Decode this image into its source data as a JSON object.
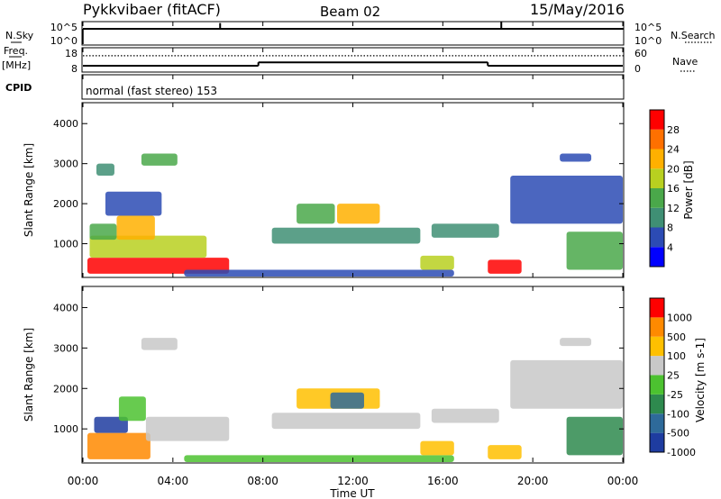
{
  "header": {
    "station": "Pykkvibaer (fitACF)",
    "beam": "Beam 02",
    "date": "15/May/2016"
  },
  "noise_panel": {
    "left_label": "N.Sky",
    "left_ticks": [
      "10^5",
      "10^0"
    ],
    "right_label": "N.Search",
    "right_ticks": [
      "10^5",
      "10^0"
    ]
  },
  "freq_panel": {
    "left_label_line1": "Freq.",
    "left_label_line2": "[MHz]",
    "left_ticks": [
      "18",
      "8"
    ],
    "right_label": "Nave",
    "right_ticks": [
      "60",
      "0"
    ]
  },
  "cpid_panel": {
    "label": "CPID",
    "text": "normal (fast stereo) 153"
  },
  "power_panel": {
    "ylabel": "Slant Range [km]",
    "yticks": [
      "4000",
      "3000",
      "2000",
      "1000"
    ],
    "colorbar_label": "Power [dB]",
    "colorbar_ticks": [
      "28",
      "24",
      "20",
      "16",
      "12",
      "8",
      "4"
    ],
    "colors": [
      "#0000ff",
      "#2c4bb4",
      "#3f8f74",
      "#4aa84a",
      "#b8d020",
      "#ffb000",
      "#ff7000",
      "#ff0000"
    ]
  },
  "velocity_panel": {
    "ylabel": "Slant Range [km]",
    "yticks": [
      "4000",
      "3000",
      "2000",
      "1000"
    ],
    "colorbar_label": "Velocity [m s-1]",
    "colorbar_ticks": [
      "1000",
      "500",
      "100",
      "25",
      "-25",
      "-100",
      "-500",
      "-1000"
    ],
    "colors": [
      "#1e3ca0",
      "#2e6a9a",
      "#2e8a4e",
      "#4cc230",
      "#c8c8c8",
      "#ffc000",
      "#ff8a00",
      "#ff0000"
    ]
  },
  "time_axis": {
    "ticks": [
      "00:00",
      "04:00",
      "08:00",
      "12:00",
      "16:00",
      "20:00",
      "00:00"
    ],
    "label": "Time UT"
  },
  "chart_data": {
    "type": "heatmap",
    "x_range_hours": [
      0,
      24
    ],
    "y_range_km": [
      180,
      4500
    ],
    "noise_search_events": [
      {
        "t": 6.1,
        "v": 0.8
      },
      {
        "t": 18.6,
        "v": 1.0
      }
    ],
    "frequency_steps": [
      {
        "t0": 0.0,
        "t1": 7.8,
        "mhz": 10.3
      },
      {
        "t0": 7.8,
        "t1": 18.0,
        "mhz": 12.0
      },
      {
        "t0": 18.0,
        "t1": 24.0,
        "mhz": 10.3
      }
    ],
    "nave_dotted": 44,
    "power_echoes": [
      {
        "t0": 0.2,
        "t1": 6.5,
        "r0": 250,
        "r1": 650,
        "level": 7
      },
      {
        "t0": 0.3,
        "t1": 5.5,
        "r0": 650,
        "r1": 1200,
        "level": 4
      },
      {
        "t0": 1.5,
        "t1": 3.2,
        "r0": 1100,
        "r1": 1700,
        "level": 5
      },
      {
        "t0": 0.3,
        "t1": 1.5,
        "r0": 1100,
        "r1": 1500,
        "level": 3
      },
      {
        "t0": 1.0,
        "t1": 3.5,
        "r0": 1700,
        "r1": 2300,
        "level": 1
      },
      {
        "t0": 0.6,
        "t1": 1.4,
        "r0": 2700,
        "r1": 3000,
        "level": 2
      },
      {
        "t0": 2.6,
        "t1": 4.2,
        "r0": 2950,
        "r1": 3250,
        "level": 3
      },
      {
        "t0": 4.5,
        "t1": 16.5,
        "r0": 180,
        "r1": 350,
        "level": 1
      },
      {
        "t0": 8.4,
        "t1": 15.0,
        "r0": 1000,
        "r1": 1400,
        "level": 2
      },
      {
        "t0": 9.5,
        "t1": 11.2,
        "r0": 1500,
        "r1": 2000,
        "level": 3
      },
      {
        "t0": 11.3,
        "t1": 13.2,
        "r0": 1500,
        "r1": 2000,
        "level": 5
      },
      {
        "t0": 15.0,
        "t1": 16.5,
        "r0": 350,
        "r1": 700,
        "level": 4
      },
      {
        "t0": 15.5,
        "t1": 18.5,
        "r0": 1150,
        "r1": 1500,
        "level": 2
      },
      {
        "t0": 18.0,
        "t1": 19.5,
        "r0": 250,
        "r1": 600,
        "level": 7
      },
      {
        "t0": 19.0,
        "t1": 24.0,
        "r0": 1500,
        "r1": 2700,
        "level": 1
      },
      {
        "t0": 21.2,
        "t1": 22.6,
        "r0": 3050,
        "r1": 3250,
        "level": 1
      },
      {
        "t0": 21.5,
        "t1": 24.0,
        "r0": 350,
        "r1": 1300,
        "level": 3
      }
    ],
    "velocity_echoes": [
      {
        "t0": 0.2,
        "t1": 3.0,
        "r0": 250,
        "r1": 900,
        "level": 6
      },
      {
        "t0": 0.5,
        "t1": 2.0,
        "r0": 900,
        "r1": 1300,
        "level": 0
      },
      {
        "t0": 2.8,
        "t1": 6.5,
        "r0": 700,
        "r1": 1300,
        "level": 4
      },
      {
        "t0": 1.6,
        "t1": 2.8,
        "r0": 1200,
        "r1": 1800,
        "level": 3
      },
      {
        "t0": 2.6,
        "t1": 4.2,
        "r0": 2950,
        "r1": 3250,
        "level": 4
      },
      {
        "t0": 4.5,
        "t1": 16.5,
        "r0": 180,
        "r1": 350,
        "level": 3
      },
      {
        "t0": 8.4,
        "t1": 15.0,
        "r0": 1000,
        "r1": 1400,
        "level": 4
      },
      {
        "t0": 9.5,
        "t1": 13.2,
        "r0": 1500,
        "r1": 2000,
        "level": 5
      },
      {
        "t0": 11.0,
        "t1": 12.5,
        "r0": 1500,
        "r1": 1900,
        "level": 1
      },
      {
        "t0": 15.0,
        "t1": 16.5,
        "r0": 350,
        "r1": 700,
        "level": 5
      },
      {
        "t0": 15.5,
        "t1": 18.5,
        "r0": 1150,
        "r1": 1500,
        "level": 4
      },
      {
        "t0": 18.0,
        "t1": 19.5,
        "r0": 250,
        "r1": 600,
        "level": 5
      },
      {
        "t0": 19.0,
        "t1": 24.0,
        "r0": 1500,
        "r1": 2700,
        "level": 4
      },
      {
        "t0": 21.2,
        "t1": 22.6,
        "r0": 3050,
        "r1": 3250,
        "level": 4
      },
      {
        "t0": 21.5,
        "t1": 24.0,
        "r0": 350,
        "r1": 1300,
        "level": 2
      }
    ]
  }
}
